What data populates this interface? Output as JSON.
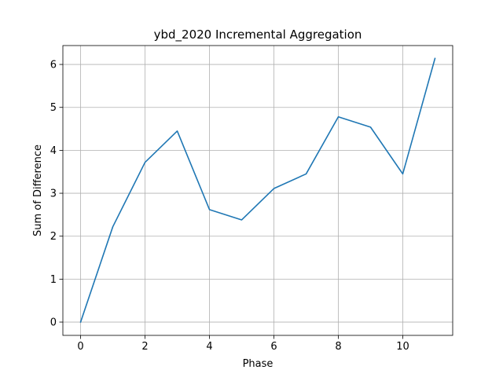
{
  "chart_data": {
    "type": "line",
    "title": "ybd_2020 Incremental Aggregation",
    "xlabel": "Phase",
    "ylabel": "Sum of Difference",
    "xlim": [
      -0.55,
      11.55
    ],
    "ylim": [
      -0.31,
      6.44
    ],
    "xticks": [
      0,
      2,
      4,
      6,
      8,
      10
    ],
    "yticks": [
      0,
      1,
      2,
      3,
      4,
      5,
      6
    ],
    "grid": true,
    "color": "#1f77b4",
    "series": [
      {
        "x": [
          0,
          1,
          2,
          3,
          4,
          5,
          6,
          7,
          8,
          9,
          10,
          11
        ],
        "values": [
          0.0,
          2.22,
          3.72,
          4.45,
          2.62,
          2.38,
          3.11,
          3.45,
          4.78,
          4.54,
          3.45,
          6.14
        ]
      }
    ]
  }
}
